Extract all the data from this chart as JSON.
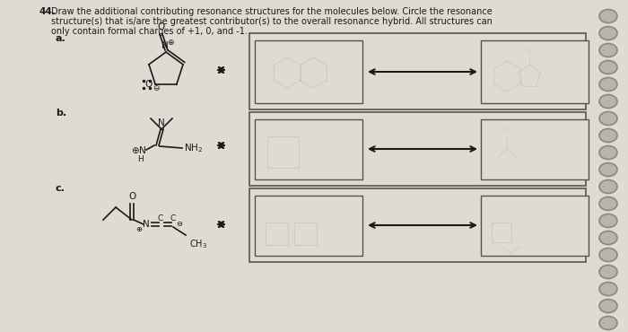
{
  "title_number": "44.",
  "title_text1": "Draw the additional contributing resonance structures for the molecules below. Circle the resonance",
  "title_text2": "structure(s) that is/are the greatest contributor(s) to the overall resonance hybrid. All structures can",
  "title_text3": "only contain formal charges of +1, 0, and -1.",
  "label_a": "a.",
  "label_b": "b.",
  "label_c": "c.",
  "paper_color": "#e0dbd2",
  "box_face_color": "#d8d4cc",
  "box_edge_color": "#555550",
  "text_color": "#1a1a1a",
  "line_color": "#1a1a1a",
  "ghost_color": "#b8b4ac",
  "spiral_face": "#b8b4ac",
  "spiral_edge": "#888882"
}
